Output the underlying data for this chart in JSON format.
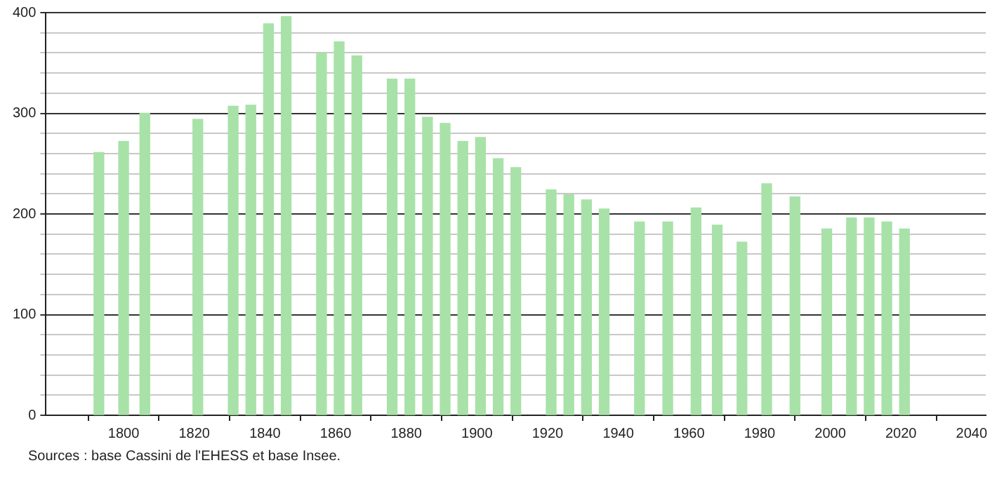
{
  "chart_data": {
    "type": "bar",
    "x": [
      1793,
      1800,
      1806,
      1821,
      1831,
      1836,
      1841,
      1846,
      1856,
      1861,
      1866,
      1876,
      1881,
      1886,
      1891,
      1896,
      1901,
      1906,
      1911,
      1921,
      1926,
      1931,
      1936,
      1946,
      1954,
      1962,
      1968,
      1975,
      1982,
      1990,
      1999,
      2006,
      2011,
      2016,
      2021
    ],
    "values": [
      261,
      272,
      300,
      294,
      307,
      308,
      389,
      396,
      360,
      371,
      357,
      334,
      334,
      296,
      290,
      272,
      276,
      255,
      246,
      224,
      219,
      214,
      205,
      192,
      192,
      206,
      189,
      172,
      230,
      217,
      185,
      196,
      196,
      192,
      185
    ],
    "color": "#a8e2a8",
    "xlim": [
      1778,
      2044
    ],
    "xticks": [
      1800,
      1820,
      1840,
      1860,
      1880,
      1900,
      1920,
      1940,
      1960,
      1980,
      2000,
      2020,
      2040
    ],
    "ylim": [
      0,
      400
    ],
    "yticks": [
      0,
      {
        "value": 20,
        "label": null
      },
      {
        "value": 40,
        "label": null
      },
      {
        "value": 60,
        "label": null
      },
      {
        "value": 80,
        "label": null
      },
      100,
      {
        "value": 120,
        "label": null
      },
      {
        "value": 140,
        "label": null
      },
      {
        "value": 160,
        "label": null
      },
      {
        "value": 180,
        "label": null
      },
      200,
      {
        "value": 220,
        "label": null
      },
      {
        "value": 240,
        "label": null
      },
      {
        "value": 260,
        "label": null
      },
      {
        "value": 280,
        "label": null
      },
      300,
      {
        "value": 320,
        "label": null
      },
      {
        "value": 340,
        "label": null
      },
      {
        "value": 360,
        "label": null
      },
      {
        "value": 380,
        "label": null
      },
      400
    ],
    "grid": "y",
    "annotations": [
      "Sources : base Cassini de l'EHESS et base Insee."
    ]
  }
}
